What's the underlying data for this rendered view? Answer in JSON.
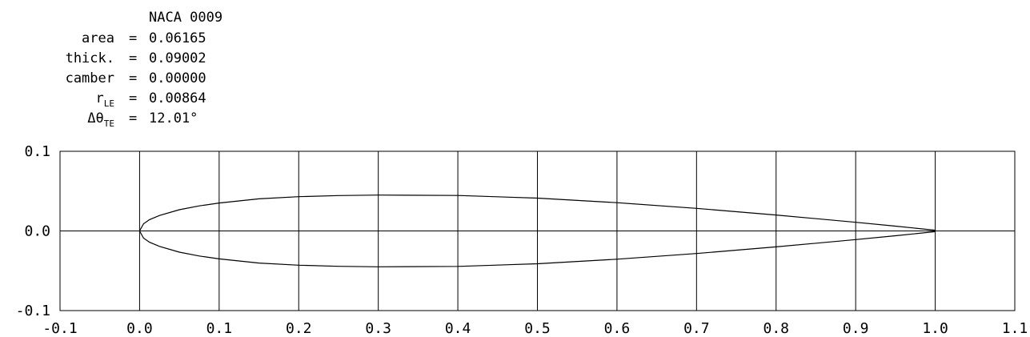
{
  "chart_data": {
    "type": "line",
    "title": "NACA 0009",
    "stats": [
      {
        "label": "area",
        "sub": "",
        "value": "0.06165"
      },
      {
        "label": "thick.",
        "sub": "",
        "value": "0.09002"
      },
      {
        "label": "camber",
        "sub": "",
        "value": "0.00000"
      },
      {
        "label": "r",
        "sub": "LE",
        "value": "0.00864"
      },
      {
        "label": "Δθ",
        "sub": "TE",
        "value": "12.01°"
      }
    ],
    "equals": "=",
    "xlim": [
      -0.1,
      1.1
    ],
    "ylim": [
      -0.1,
      0.1
    ],
    "xticks": [
      "-0.1",
      "0.0",
      "0.1",
      "0.2",
      "0.3",
      "0.4",
      "0.5",
      "0.6",
      "0.7",
      "0.8",
      "0.9",
      "1.0",
      "1.1"
    ],
    "yticks": [
      "-0.1",
      "0.0",
      "0.1"
    ],
    "grid": true,
    "series": [
      {
        "x": [
          1.0,
          0.95,
          0.9,
          0.8,
          0.7,
          0.6,
          0.5,
          0.4,
          0.3,
          0.25,
          0.2,
          0.15,
          0.1,
          0.075,
          0.05,
          0.025,
          0.0125,
          0.005,
          0.0,
          0.005,
          0.0125,
          0.025,
          0.05,
          0.075,
          0.1,
          0.15,
          0.2,
          0.25,
          0.3,
          0.4,
          0.5,
          0.6,
          0.7,
          0.8,
          0.9,
          0.95,
          1.0
        ],
        "y": [
          0.0009,
          0.006,
          0.0109,
          0.02,
          0.0283,
          0.0355,
          0.0412,
          0.0445,
          0.045,
          0.0444,
          0.043,
          0.0403,
          0.0351,
          0.0315,
          0.0266,
          0.0194,
          0.0142,
          0.009,
          0.0,
          -0.009,
          -0.0142,
          -0.0194,
          -0.0266,
          -0.0315,
          -0.0351,
          -0.0403,
          -0.043,
          -0.0444,
          -0.045,
          -0.0445,
          -0.0412,
          -0.0355,
          -0.0283,
          -0.02,
          -0.0109,
          -0.006,
          -0.0009
        ]
      }
    ]
  }
}
